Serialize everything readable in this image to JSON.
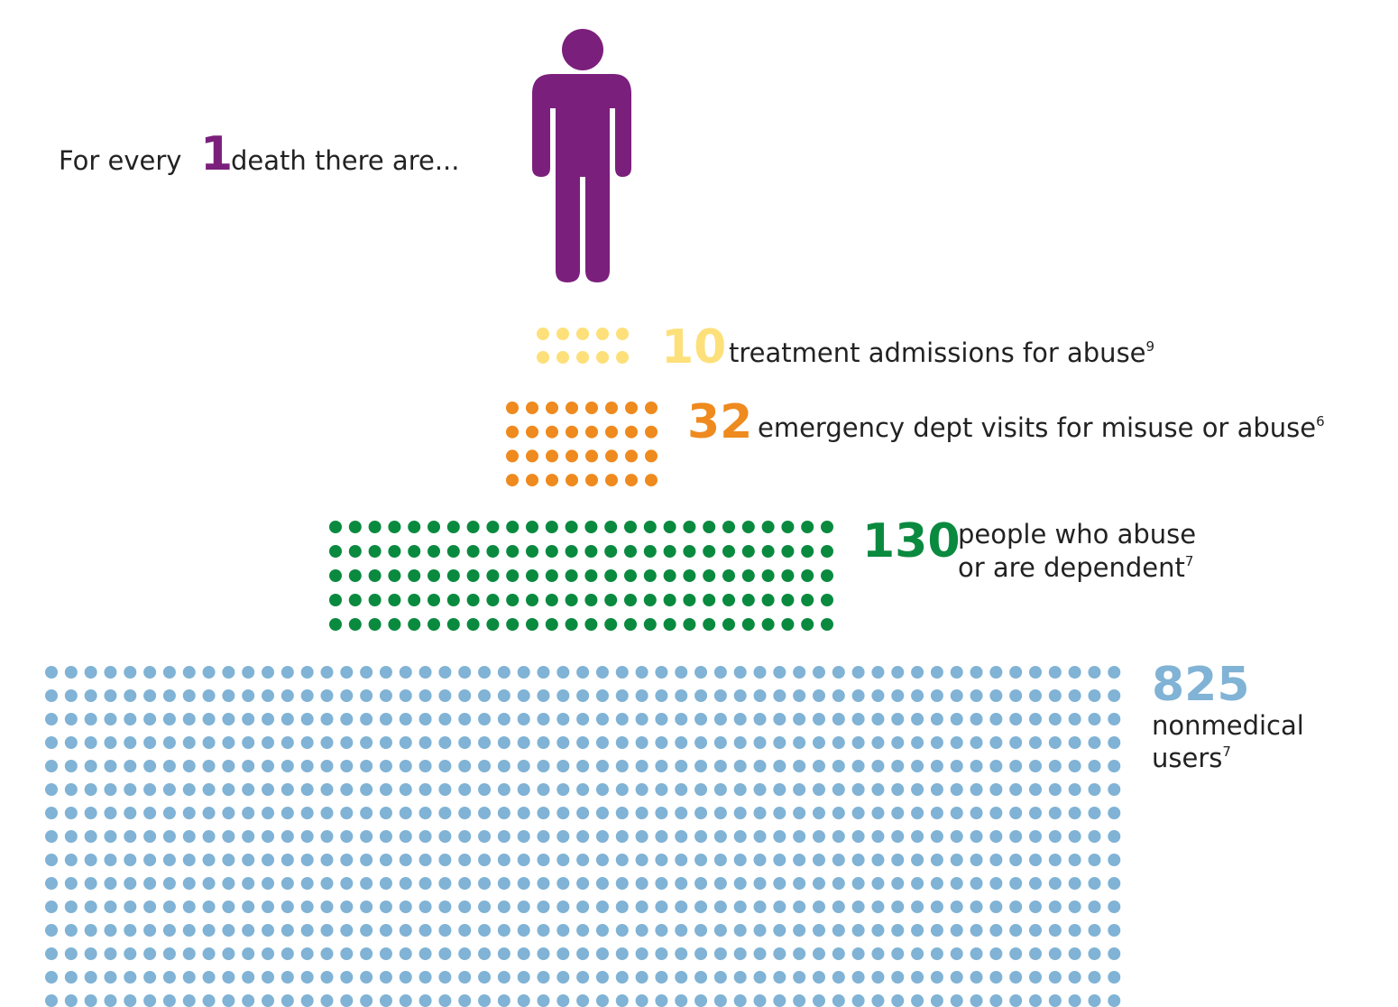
{
  "chart_data": {
    "type": "pictogram",
    "intro": {
      "prefix": "For every",
      "value": 1,
      "suffix": "death there are...",
      "color": "#7b1f7c"
    },
    "series": [
      {
        "value": 10,
        "label": [
          "treatment admissions for abuse"
        ],
        "note": "9",
        "color": "#fde07a"
      },
      {
        "value": 32,
        "label": [
          "emergency dept visits for misuse or abuse"
        ],
        "note": "6",
        "color": "#ee8a1e"
      },
      {
        "value": 130,
        "label": [
          "people who abuse",
          "or are dependent"
        ],
        "note": "7",
        "color": "#0a8a3f"
      },
      {
        "value": 825,
        "label": [
          "nonmedical",
          "users"
        ],
        "note": "7",
        "color": "#80b3d5"
      }
    ]
  }
}
